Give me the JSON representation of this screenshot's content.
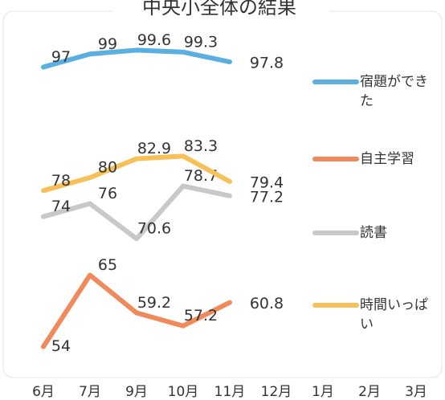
{
  "chart_data": {
    "type": "line",
    "title": "中央小全体の結果",
    "categories": [
      "6月",
      "7月",
      "9月",
      "10月",
      "11月",
      "12月",
      "1月",
      "2月",
      "3月"
    ],
    "series": [
      {
        "name": "宿題ができた",
        "color": "#5aaee0",
        "values": [
          97,
          99,
          99.6,
          99.3,
          97.8,
          null,
          null,
          null,
          null
        ]
      },
      {
        "name": "自主学習",
        "color": "#f08a5a",
        "values": [
          54,
          65,
          59.2,
          57.2,
          60.8,
          null,
          null,
          null,
          null
        ]
      },
      {
        "name": "読書",
        "color": "#c8c8c8",
        "values": [
          74,
          76,
          70.6,
          78.7,
          77.2,
          null,
          null,
          null,
          null
        ]
      },
      {
        "name": "時間いっぱい",
        "color": "#f8c058",
        "values": [
          78,
          80,
          82.9,
          83.3,
          79.4,
          null,
          null,
          null,
          null
        ]
      }
    ],
    "ylim": [
      50,
      102
    ]
  }
}
